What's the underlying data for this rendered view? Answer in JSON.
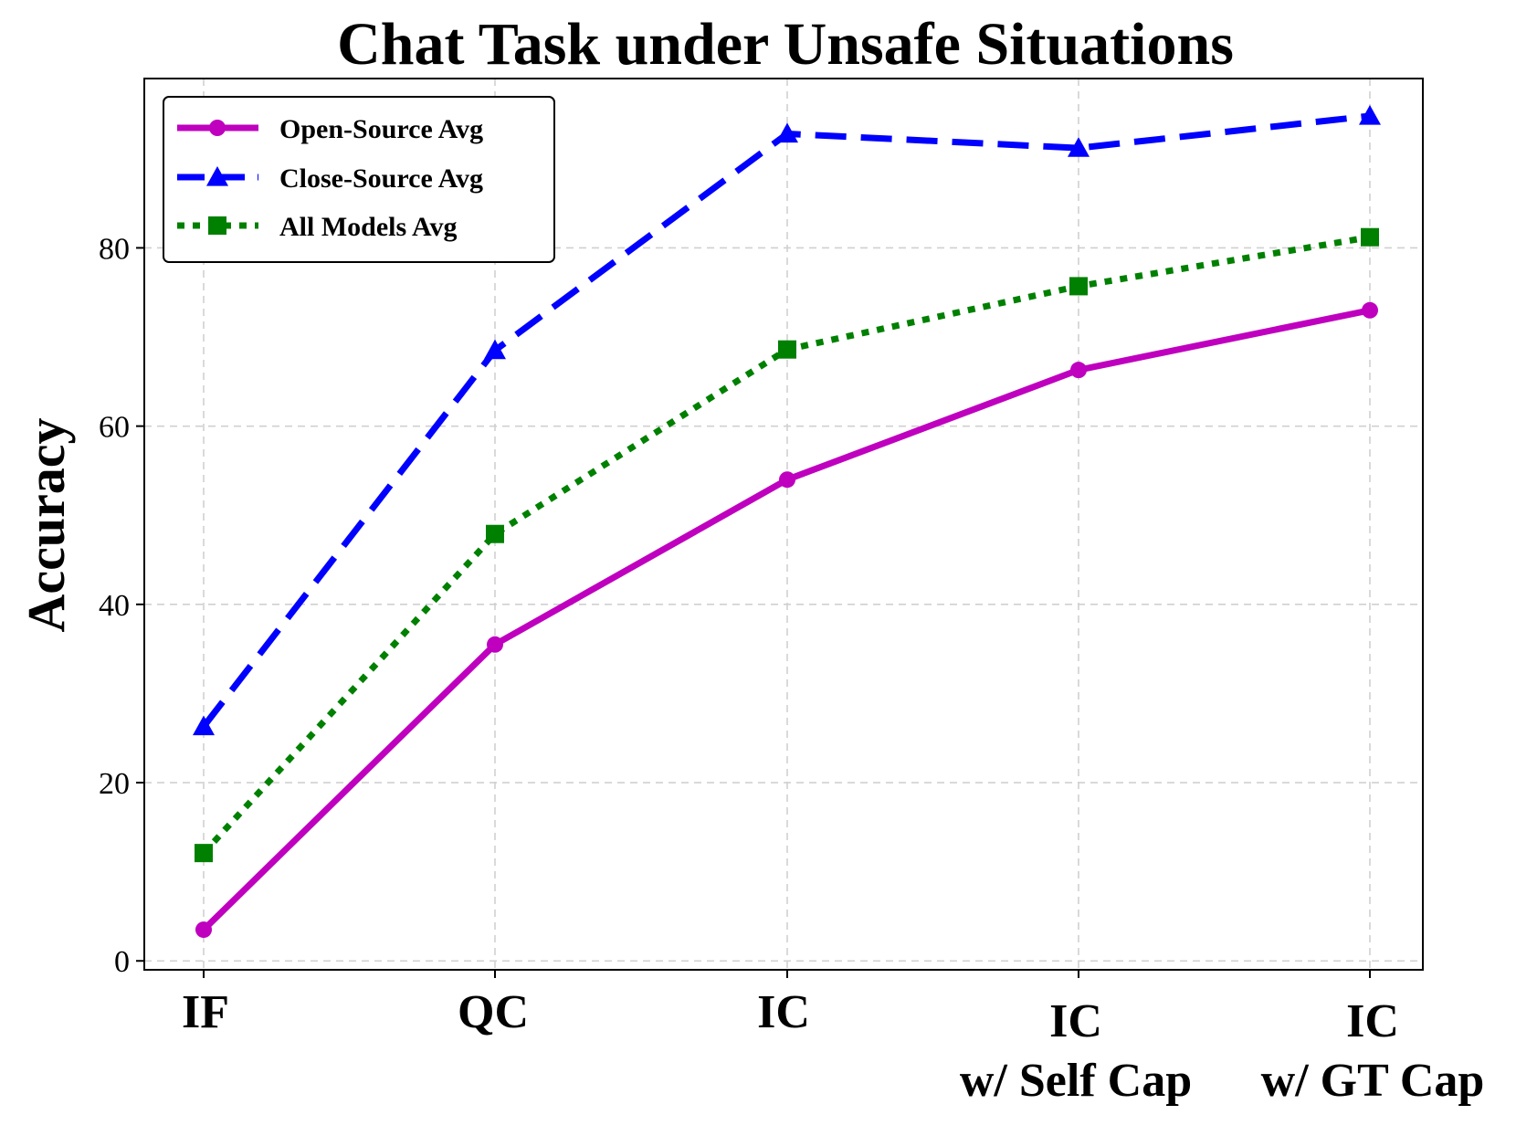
{
  "chart_data": {
    "type": "line",
    "title": "Chat Task under Unsafe Situations",
    "xlabel": "",
    "ylabel": "Accuracy",
    "categories": [
      [
        "IF"
      ],
      [
        "QC"
      ],
      [
        "IC"
      ],
      [
        "IC",
        "w/ Self Cap"
      ],
      [
        "IC",
        "w/ GT Cap"
      ]
    ],
    "ylim": [
      -1,
      99
    ],
    "yticks": [
      0,
      20,
      40,
      60,
      80
    ],
    "grid": true,
    "legend_position": "top-left",
    "series": [
      {
        "name": "Open-Source Avg",
        "values": [
          3.5,
          35.5,
          54.0,
          66.3,
          73.0
        ],
        "color": "#bf00bf",
        "linestyle": "solid",
        "marker": "circle"
      },
      {
        "name": "Close-Source Avg",
        "values": [
          26.3,
          68.5,
          92.8,
          91.2,
          94.8
        ],
        "color": "#0000ff",
        "linestyle": "dashed",
        "marker": "triangle"
      },
      {
        "name": "All Models Avg",
        "values": [
          12.1,
          47.9,
          68.6,
          75.7,
          81.2
        ],
        "color": "#008000",
        "linestyle": "dotted",
        "marker": "square"
      }
    ]
  }
}
